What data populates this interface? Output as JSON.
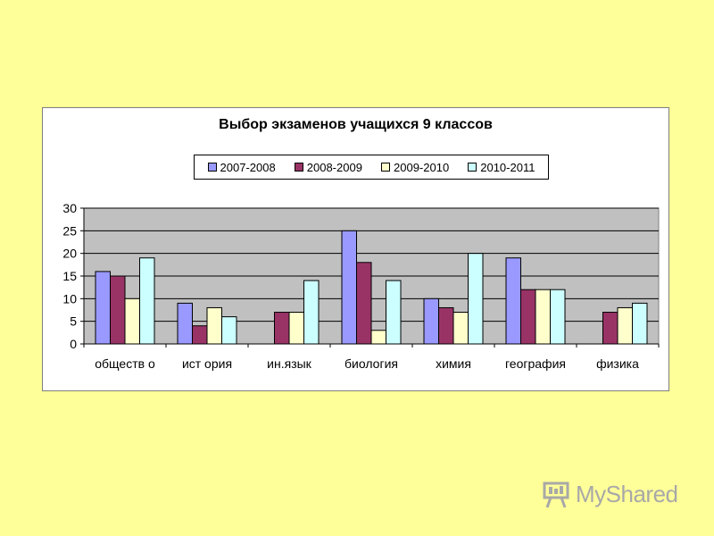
{
  "chart_data": {
    "type": "bar",
    "title": "Выбор экзаменов учащихся 9 классов",
    "categories": [
      "обществ о",
      "ист ория",
      "ин.язык",
      "биология",
      "химия",
      "география",
      "физика"
    ],
    "series": [
      {
        "name": "2007-2008",
        "color": "#9999ff",
        "values": [
          16,
          9,
          0,
          25,
          10,
          19,
          0
        ]
      },
      {
        "name": "2008-2009",
        "color": "#993366",
        "values": [
          15,
          4,
          7,
          18,
          8,
          12,
          7
        ]
      },
      {
        "name": "2009-2010",
        "color": "#ffffcc",
        "values": [
          10,
          8,
          7,
          3,
          7,
          12,
          8
        ]
      },
      {
        "name": "2010-2011",
        "color": "#ccffff",
        "values": [
          19,
          6,
          14,
          14,
          20,
          12,
          9
        ]
      }
    ],
    "xlabel": "",
    "ylabel": "",
    "ylim": [
      0,
      30
    ],
    "yticks": [
      "0",
      "5",
      "10",
      "15",
      "20",
      "25",
      "30"
    ],
    "grid": true,
    "plot_background": "#c0c0c0",
    "legend_position": "top"
  },
  "watermark": {
    "text": "MyShared",
    "icon": "presentation-board-icon"
  }
}
